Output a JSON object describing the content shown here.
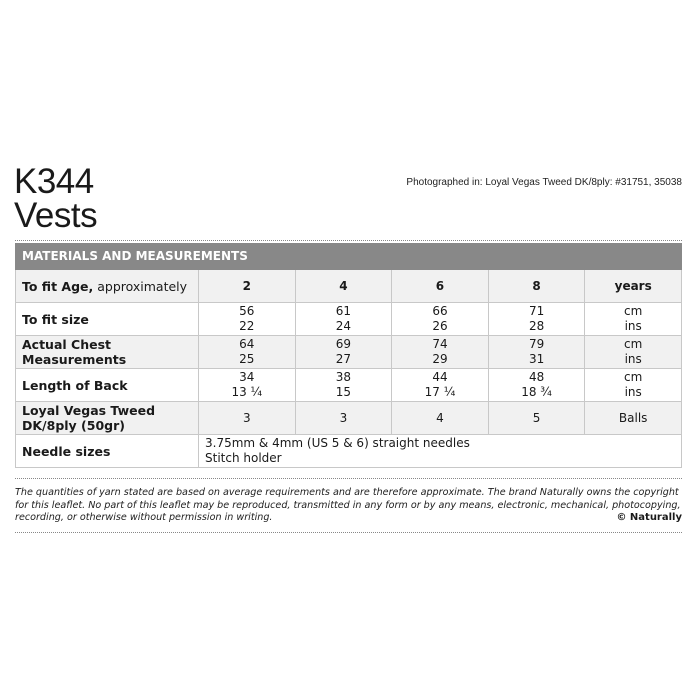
{
  "header": {
    "code": "K344",
    "name": "Vests",
    "photographed": "Photographed in: Loyal Vegas Tweed DK/8ply: #31751, 35038"
  },
  "table": {
    "title": "MATERIALS AND MEASUREMENTS",
    "age": {
      "label_bold": "To fit Age,",
      "label_rest": " approximately",
      "values": [
        "2",
        "4",
        "6",
        "8"
      ],
      "unit": "years"
    },
    "size": {
      "label": "To fit size",
      "cm": [
        "56",
        "61",
        "66",
        "71"
      ],
      "ins": [
        "22",
        "24",
        "26",
        "28"
      ],
      "unit_cm": "cm",
      "unit_ins": "ins"
    },
    "chest": {
      "label1": "Actual Chest",
      "label2": "Measurements",
      "cm": [
        "64",
        "69",
        "74",
        "79"
      ],
      "ins": [
        "25",
        "27",
        "29",
        "31"
      ],
      "unit_cm": "cm",
      "unit_ins": "ins"
    },
    "length": {
      "label": "Length of Back",
      "cm": [
        "34",
        "38",
        "44",
        "48"
      ],
      "ins": [
        "13 ¼",
        "15",
        "17 ¼",
        "18 ¾"
      ],
      "unit_cm": "cm",
      "unit_ins": "ins"
    },
    "yarn": {
      "label1": "Loyal Vegas Tweed",
      "label2": "DK/8ply (50gr)",
      "values": [
        "3",
        "3",
        "4",
        "5"
      ],
      "unit": "Balls"
    },
    "needles": {
      "label": "Needle sizes",
      "line1": "3.75mm & 4mm (US 5 & 6) straight needles",
      "line2": "Stitch holder"
    }
  },
  "footer": {
    "text": "The quantities of yarn stated are based on average requirements and are therefore approximate. The brand Naturally owns the copyright for this leaflet. No part of this leaflet may be reproduced, transmitted in any form or by any means, electronic, mechanical, photocopying, recording, or otherwise without permission in writing.",
    "copyright": "© Naturally"
  }
}
